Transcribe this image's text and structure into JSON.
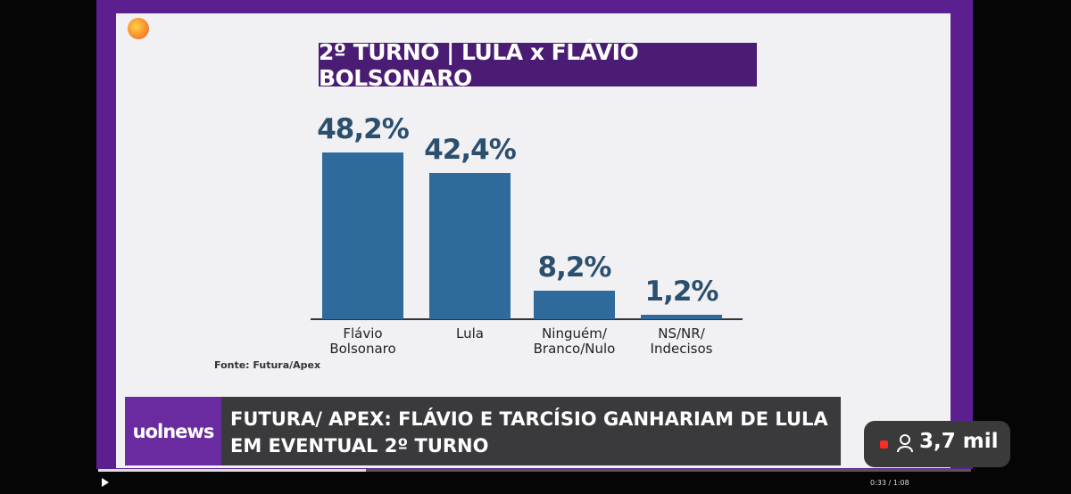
{
  "chart_data": {
    "type": "bar",
    "title": "2º TURNO | LULA x FLÁVIO BOLSONARO",
    "categories": [
      "Flávio\nBolsonaro",
      "Lula",
      "Ninguém/\nBranco/Nulo",
      "NS/NR/\nIndecisos"
    ],
    "values": [
      48.2,
      42.4,
      8.2,
      1.2
    ],
    "value_labels": [
      "48,2%",
      "42,4%",
      "8,2%",
      "1,2%"
    ],
    "color": "#2f6a9c",
    "source": "Fonte: Futura/Apex"
  },
  "banner": {
    "brand": "uolnews",
    "headline": "FUTURA/ APEX: FLÁVIO E TARCÍSIO GANHARIAM DE LULA EM EVENTUAL 2º TURNO"
  },
  "player": {
    "time": "0:33 / 1:08",
    "viewers": "3,7 mil"
  }
}
